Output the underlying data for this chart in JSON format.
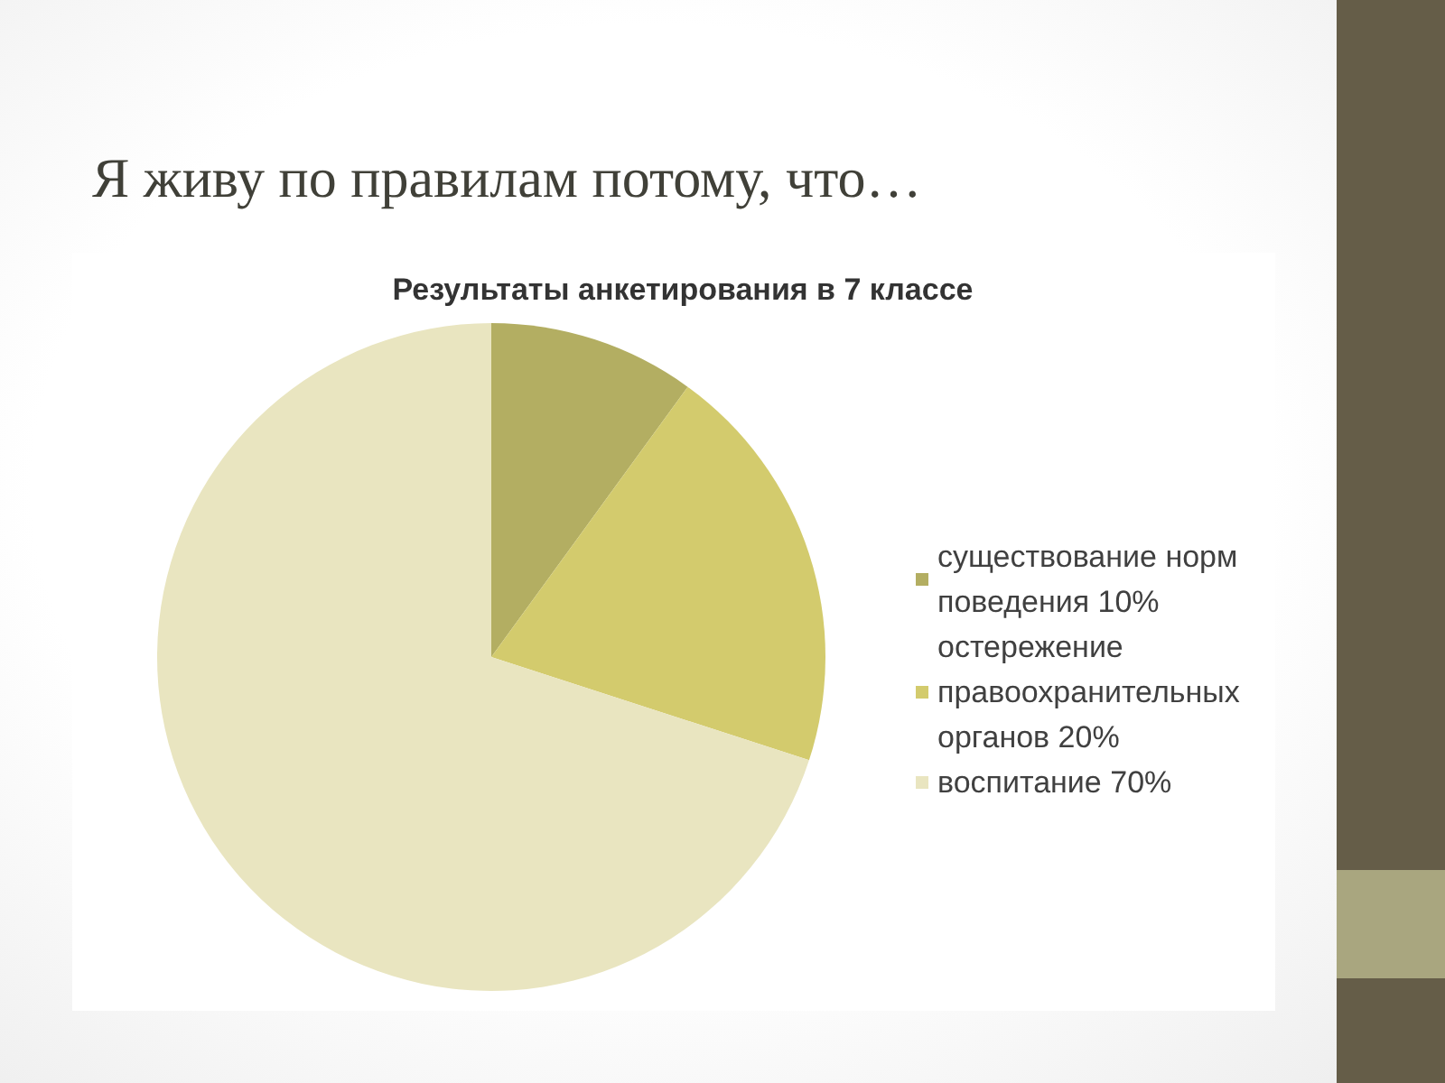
{
  "chart_data": {
    "type": "pie",
    "title": "Я живу по правилам потому, что…",
    "subtitle": "Результаты анкетирования в 7 классе",
    "categories": [
      "существование норм поведения 10%",
      "остережение правоохранительных органов 20%",
      "воспитание 70%"
    ],
    "values": [
      10,
      20,
      70
    ],
    "colors": [
      "#b3ae62",
      "#d3cb6d",
      "#e9e5c0"
    ],
    "legend": "right"
  }
}
